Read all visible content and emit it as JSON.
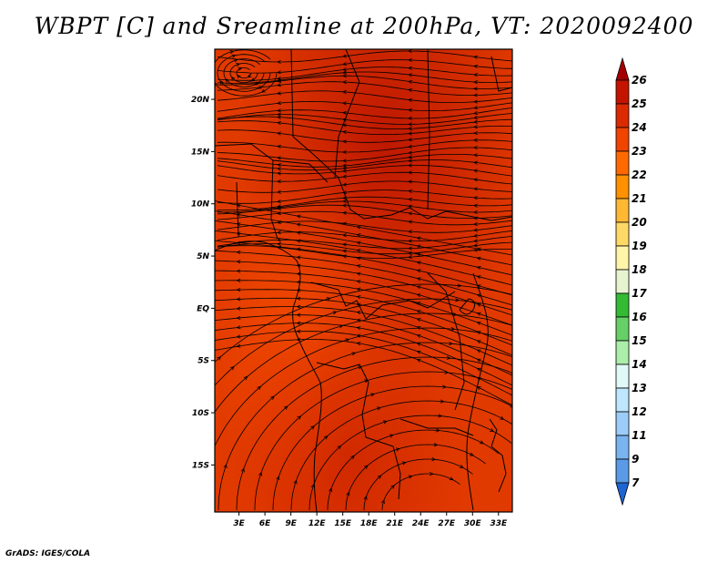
{
  "title": "WBPT [C] and Sreamline at 200hPa, VT: 2020092400",
  "credit": "GrADS: IGES/COLA",
  "map": {
    "lat_labels": [
      "20N",
      "15N",
      "10N",
      "5N",
      "EQ",
      "5S",
      "10S",
      "15S"
    ],
    "lat_values": [
      20,
      15,
      10,
      5,
      0,
      -5,
      -10,
      -15
    ],
    "lon_labels": [
      "3E",
      "6E",
      "9E",
      "12E",
      "15E",
      "18E",
      "21E",
      "24E",
      "27E",
      "30E",
      "33E"
    ],
    "lon_values": [
      3,
      6,
      9,
      12,
      15,
      18,
      21,
      24,
      27,
      30,
      33
    ],
    "lat_range": [
      -19.5,
      24.8
    ],
    "lon_range": [
      0.2,
      34.6
    ]
  },
  "colorbar": {
    "labels": [
      "26",
      "25",
      "24",
      "23",
      "22",
      "21",
      "20",
      "19",
      "18",
      "17",
      "16",
      "15",
      "14",
      "13",
      "12",
      "11",
      "9",
      "7"
    ],
    "colors": [
      "#a50000",
      "#c41400",
      "#dc2a00",
      "#f04400",
      "#ff6a00",
      "#ff9000",
      "#ffb833",
      "#ffd966",
      "#fff5a8",
      "#e6f5d0",
      "#33bb33",
      "#66d066",
      "#aaeeaa",
      "#e0f8f8",
      "#bfe6ff",
      "#9ccdf8",
      "#7ab4f0",
      "#5a9ae6",
      "#3a7fdc",
      "#1e64d2"
    ],
    "colors_note": "bottom triangle #1e64d2 ... top triangle #a50000"
  }
}
